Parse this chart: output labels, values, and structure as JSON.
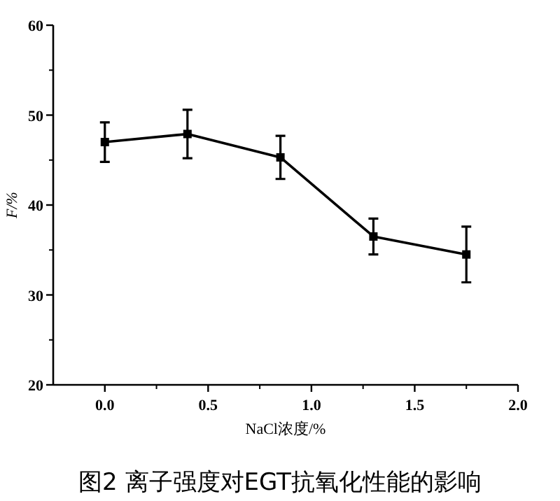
{
  "chart_data": {
    "type": "line",
    "title": "图2  离子强度对EGT抗氧化性能的影响",
    "xlabel": "NaCl浓度/%",
    "ylabel": "F/%",
    "x": [
      0,
      0.4,
      0.85,
      1.3,
      1.75
    ],
    "series": [
      {
        "color": "#000000",
        "values": [
          47.0,
          47.9,
          45.3,
          36.5,
          34.5
        ],
        "errors": [
          2.2,
          2.7,
          2.4,
          2.0,
          3.1
        ]
      }
    ],
    "marker": "square",
    "line_style": "solid",
    "grid": false,
    "xlim": [
      -0.25,
      2.0
    ],
    "xticks": [
      {
        "value": 0,
        "label": "0.0"
      },
      {
        "value": 0.5,
        "label": "0.5"
      },
      {
        "value": 1,
        "label": "1.0"
      },
      {
        "value": 1.5,
        "label": "1.5"
      },
      {
        "value": 2,
        "label": "2.0"
      }
    ],
    "ylim": [
      20,
      60
    ],
    "yticks": [
      20,
      30,
      40,
      50,
      60
    ]
  }
}
